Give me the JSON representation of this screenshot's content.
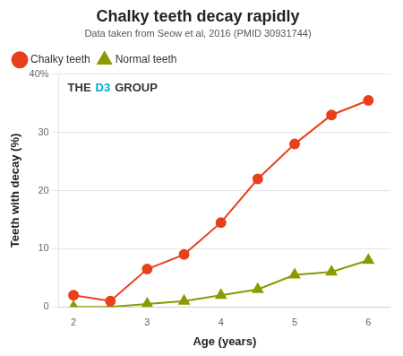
{
  "chart_data": {
    "type": "line",
    "title": "Chalky teeth decay rapidly",
    "subtitle": "Data taken from Seow et al, 2016 (PMID 30931744)",
    "x_label": "Age (years)",
    "y_label": "Teeth with decay (%)",
    "x": [
      2,
      2.5,
      3,
      3.5,
      4,
      4.5,
      5,
      5.5,
      6
    ],
    "series": [
      {
        "name": "Chalky teeth",
        "color": "#e8401c",
        "marker": "circle",
        "values": [
          2,
          1,
          6.5,
          9,
          14.5,
          22,
          28,
          33,
          35.5
        ]
      },
      {
        "name": "Normal teeth",
        "color": "#8b9a00",
        "marker": "triangle",
        "values": [
          0,
          0,
          0.5,
          1,
          2,
          3,
          5.5,
          6,
          8
        ]
      }
    ],
    "xlim": [
      1.8,
      6.3
    ],
    "xticks": [
      2,
      3,
      4,
      5,
      6
    ],
    "ylim": [
      0,
      40
    ],
    "yticks": [
      0,
      10,
      20,
      30,
      {
        "value": 40,
        "label": "40%"
      }
    ],
    "grid": "y",
    "legend": "upper left",
    "annotations": [
      {
        "text": "THE",
        "color": "#333333"
      },
      {
        "text": "D3",
        "color": "#00aacc"
      },
      {
        "text": "GROUP",
        "color": "#333333"
      }
    ]
  }
}
